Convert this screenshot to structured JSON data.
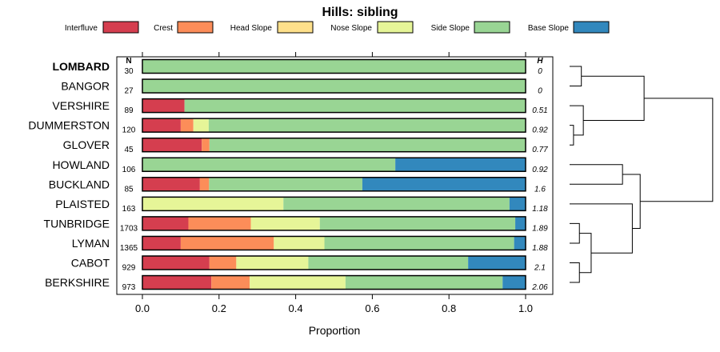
{
  "chart_data": {
    "type": "bar",
    "stacked": true,
    "orientation": "horizontal",
    "title": "Hills: sibling",
    "xlabel": "Proportion",
    "xlim": [
      0,
      1
    ],
    "xticks": [
      0.0,
      0.2,
      0.4,
      0.6,
      0.8,
      1.0
    ],
    "xtick_labels": [
      "0.0",
      "0.2",
      "0.4",
      "0.6",
      "0.8",
      "1.0"
    ],
    "n_header": "N",
    "h_header": "H",
    "legend": [
      {
        "name": "Interfluve",
        "color": "#d53e4f"
      },
      {
        "name": "Crest",
        "color": "#fc8d59"
      },
      {
        "name": "Head Slope",
        "color": "#fee08b"
      },
      {
        "name": "Nose Slope",
        "color": "#e6f598"
      },
      {
        "name": "Side Slope",
        "color": "#99d594"
      },
      {
        "name": "Base Slope",
        "color": "#3288bd"
      }
    ],
    "categories": [
      "LOMBARD",
      "BANGOR",
      "VERSHIRE",
      "DUMMERSTON",
      "GLOVER",
      "HOWLAND",
      "BUCKLAND",
      "PLAISTED",
      "TUNBRIDGE",
      "LYMAN",
      "CABOT",
      "BERKSHIRE"
    ],
    "highlight": "LOMBARD",
    "n": [
      "30",
      "27",
      "89",
      "120",
      "45",
      "106",
      "85",
      "163",
      "1703",
      "1365",
      "929",
      "973"
    ],
    "h": [
      "0",
      "0",
      "0.51",
      "0.92",
      "0.77",
      "0.92",
      "1.6",
      "1.18",
      "1.89",
      "1.88",
      "2.1",
      "2.06"
    ],
    "series": [
      {
        "name": "Interfluve",
        "values": [
          0,
          0,
          0.11,
          0.1,
          0.155,
          0,
          0.15,
          0,
          0.12,
          0.1,
          0.175,
          0.18
        ]
      },
      {
        "name": "Crest",
        "values": [
          0,
          0,
          0,
          0.033,
          0.02,
          0,
          0.024,
          0,
          0.163,
          0.243,
          0.07,
          0.1
        ]
      },
      {
        "name": "Head Slope",
        "values": [
          0,
          0,
          0,
          0,
          0,
          0,
          0,
          0,
          0,
          0,
          0,
          0
        ]
      },
      {
        "name": "Nose Slope",
        "values": [
          0,
          0,
          0,
          0.04,
          0,
          0,
          0,
          0.368,
          0.18,
          0.132,
          0.188,
          0.25
        ]
      },
      {
        "name": "Side Slope",
        "values": [
          1.0,
          1.0,
          0.89,
          0.827,
          0.825,
          0.66,
          0.4,
          0.59,
          0.51,
          0.495,
          0.417,
          0.41
        ]
      },
      {
        "name": "Base Slope",
        "values": [
          0,
          0,
          0,
          0,
          0,
          0.34,
          0.426,
          0.042,
          0.027,
          0.03,
          0.15,
          0.06
        ]
      }
    ],
    "dendrogram": {
      "type": "hierarchical-clustering",
      "merges": [
        {
          "a": "LOMBARD",
          "b": "BANGOR",
          "height": 0.06
        },
        {
          "a": "DUMMERSTON",
          "b": "GLOVER",
          "height": 0.02
        },
        {
          "a": "VERSHIRE",
          "b": "c2",
          "height": 0.07
        },
        {
          "a": "c1",
          "b": "c3",
          "height": 0.38
        },
        {
          "a": "HOWLAND",
          "b": "BUCKLAND",
          "height": 0.27
        },
        {
          "a": "TUNBRIDGE",
          "b": "LYMAN",
          "height": 0.05
        },
        {
          "a": "CABOT",
          "b": "BERKSHIRE",
          "height": 0.05
        },
        {
          "a": "c6",
          "b": "c7",
          "height": 0.11
        },
        {
          "a": "PLAISTED",
          "b": "c8",
          "height": 0.32
        },
        {
          "a": "c5",
          "b": "c9",
          "height": 0.36
        },
        {
          "a": "c4",
          "b": "c10",
          "height": 0.73
        }
      ]
    }
  }
}
